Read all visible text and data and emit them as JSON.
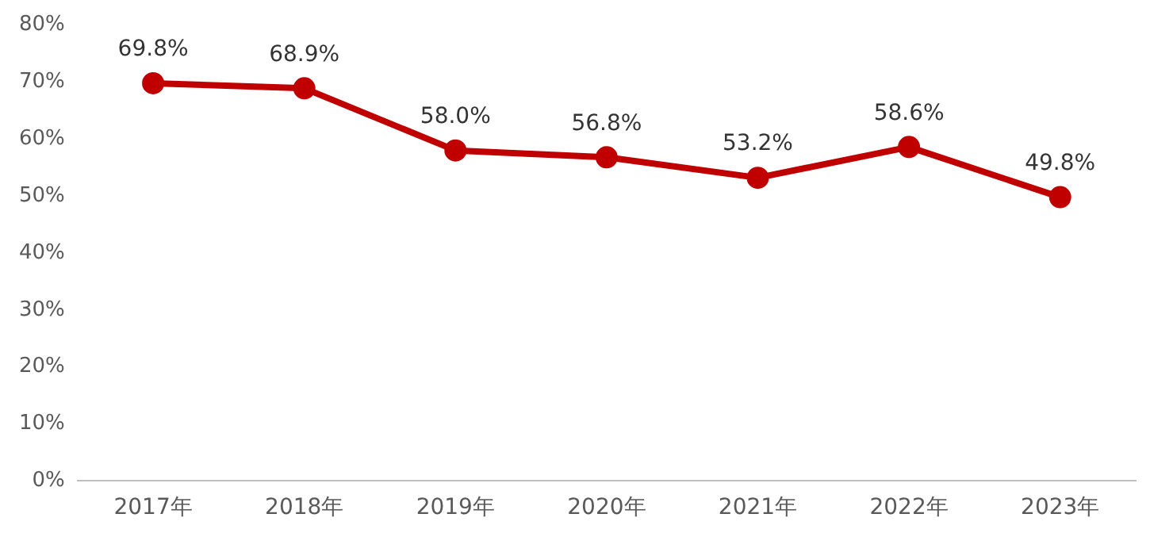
{
  "chart_data": {
    "type": "line",
    "categories": [
      "2017年",
      "2018年",
      "2019年",
      "2020年",
      "2021年",
      "2022年",
      "2023年"
    ],
    "values": [
      69.8,
      68.9,
      58.0,
      56.8,
      53.2,
      58.6,
      49.8
    ],
    "value_labels": [
      "69.8%",
      "68.9%",
      "58.0%",
      "56.8%",
      "53.2%",
      "58.6%",
      "49.8%"
    ],
    "color": "#c00000",
    "marker": "circle",
    "line_style": "solid",
    "grid": false,
    "legend": false,
    "ylim": [
      0,
      80
    ],
    "yticks": [
      {
        "value": 0,
        "label": "0%"
      },
      {
        "value": 10,
        "label": "10%"
      },
      {
        "value": 20,
        "label": "20%"
      },
      {
        "value": 30,
        "label": "30%"
      },
      {
        "value": 40,
        "label": "40%"
      },
      {
        "value": 50,
        "label": "50%"
      },
      {
        "value": 60,
        "label": "60%"
      },
      {
        "value": 70,
        "label": "70%"
      },
      {
        "value": 80,
        "label": "80%"
      }
    ]
  }
}
